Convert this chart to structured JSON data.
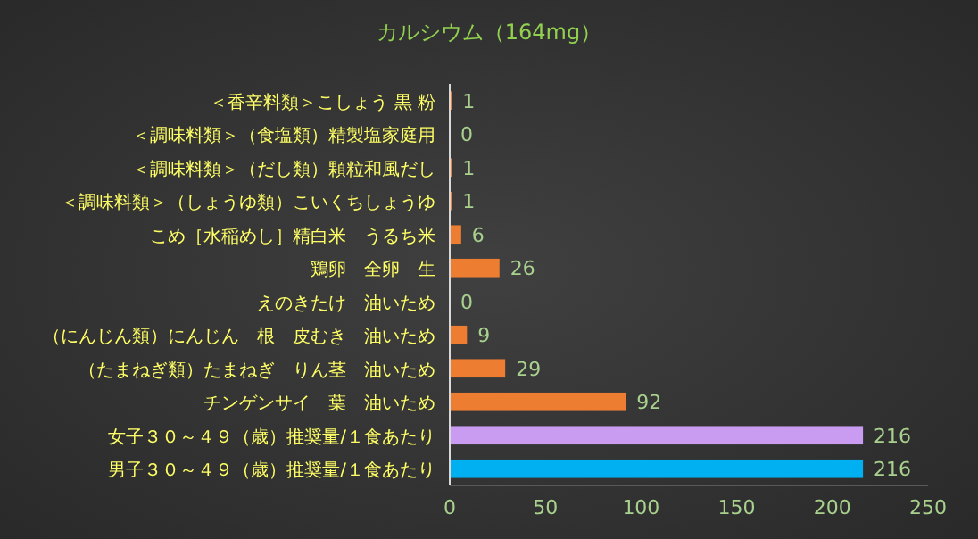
{
  "chart_data": {
    "type": "bar",
    "orientation": "horizontal",
    "title": "カルシウム（164mg）",
    "categories": [
      "＜香辛料類＞こしょう 黒 粉",
      "＜調味料類＞（食塩類）精製塩家庭用",
      "＜調味料類＞（だし類）顆粒和風だし",
      "＜調味料類＞（しょうゆ類）こいくちしょうゆ",
      "こめ［水稲めし］精白米　うるち米",
      "鶏卵　全卵　生",
      "えのきたけ　油いため",
      "（にんじん類）にんじん　根　皮むき　油いため",
      "（たまねぎ類）たまねぎ　りん茎　油いため",
      "チンゲンサイ　葉　油いため",
      "女子３０～４９（歳）推奨量/１食あたり",
      "男子３０～４９（歳）推奨量/１食あたり"
    ],
    "values": [
      1,
      0,
      1,
      1,
      6,
      26,
      0,
      9,
      29,
      92,
      216,
      216
    ],
    "colors": [
      "#ed7d31",
      "#ed7d31",
      "#ed7d31",
      "#ed7d31",
      "#ed7d31",
      "#ed7d31",
      "#ed7d31",
      "#ed7d31",
      "#ed7d31",
      "#ed7d31",
      "#c99cf2",
      "#00b0f0"
    ],
    "data_labels": true,
    "xlim": [
      0,
      250
    ],
    "xticks": [
      0,
      50,
      100,
      150,
      200,
      250
    ],
    "grid": false
  }
}
